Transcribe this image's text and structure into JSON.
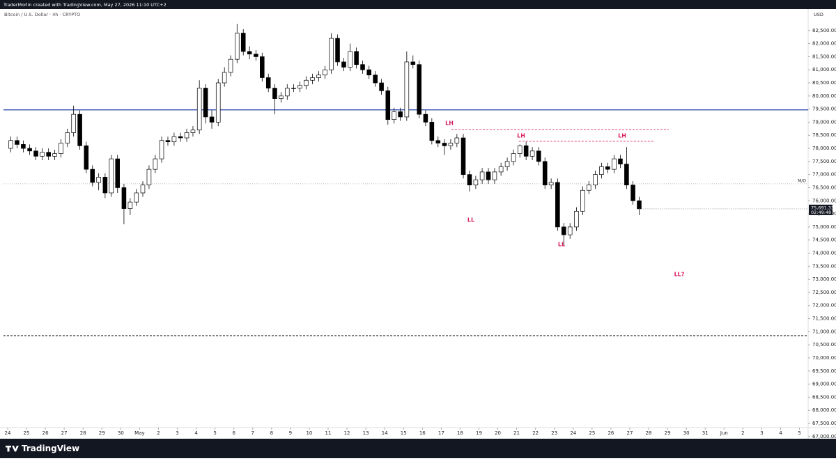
{
  "header": {
    "credit": "TraderMorlin created with TradingView.com, May 27, 2026 11:10 UTC+2",
    "brand": "TradingView"
  },
  "chart_data": {
    "type": "candlestick",
    "title": "Bitcoin / U.S. Dollar · 4h · CRYPTO",
    "currency": "USD",
    "up_color": "#ffffff",
    "down_color": "#000000",
    "border_color": "#000000",
    "x": [
      0.17,
      0.5,
      0.83,
      1.17,
      1.5,
      1.83,
      2.17,
      2.5,
      2.83,
      3.17,
      3.5,
      3.83,
      4.17,
      4.5,
      4.83,
      5.17,
      5.5,
      5.83,
      6.17,
      6.5,
      6.83,
      7.17,
      7.5,
      7.83,
      8.17,
      8.5,
      8.83,
      9.17,
      9.5,
      9.83,
      10.17,
      10.5,
      10.83,
      11.17,
      11.5,
      11.83,
      12.17,
      12.5,
      12.83,
      13.17,
      13.5,
      13.83,
      14.17,
      14.5,
      14.83,
      15.17,
      15.5,
      15.83,
      16.17,
      16.5,
      16.83,
      17.17,
      17.5,
      17.83,
      18.17,
      18.5,
      18.83,
      19.17,
      19.5,
      19.83,
      20.17,
      20.5,
      20.83,
      21.17,
      21.5,
      21.83,
      22.17,
      22.5,
      22.83,
      23.17,
      23.5,
      23.83,
      24.17,
      24.5,
      24.83,
      25.17,
      25.5,
      25.83,
      26.17,
      26.5,
      26.83,
      27.17,
      27.5,
      27.83,
      28.17,
      28.5,
      28.83,
      29.17,
      29.5,
      29.83,
      30.17,
      30.5,
      30.83,
      31.17,
      31.5,
      31.83,
      32.17,
      32.5,
      32.83,
      33.17,
      33.5
    ],
    "open": [
      78000,
      78300,
      78150,
      78000,
      77900,
      77700,
      77850,
      77700,
      77800,
      78200,
      78600,
      79300,
      78100,
      77200,
      76700,
      76900,
      76300,
      77600,
      76500,
      75700,
      75950,
      76300,
      76600,
      77200,
      77600,
      78300,
      78250,
      78450,
      78400,
      78600,
      78700,
      80300,
      79200,
      79000,
      80500,
      80900,
      81400,
      82400,
      81700,
      81600,
      81500,
      80700,
      80300,
      79900,
      80000,
      80300,
      80300,
      80400,
      80600,
      80700,
      80800,
      81000,
      82200,
      81300,
      81100,
      81700,
      81200,
      81000,
      80800,
      80500,
      80200,
      79100,
      79400,
      79200,
      81300,
      81200,
      79300,
      79000,
      78300,
      78200,
      78100,
      78200,
      78400,
      77000,
      76600,
      76800,
      77100,
      76800,
      77100,
      77300,
      77500,
      77800,
      78100,
      77700,
      77900,
      77500,
      76600,
      76700,
      75000,
      74700,
      75000,
      75600,
      76400,
      76600,
      77000,
      77300,
      77200,
      77600,
      77400,
      76600,
      76000
    ],
    "high": [
      78450,
      78450,
      78300,
      78150,
      78050,
      78000,
      78000,
      77950,
      78350,
      78750,
      79630,
      79450,
      78250,
      77350,
      77050,
      77050,
      77750,
      77750,
      76650,
      76100,
      76450,
      76750,
      77350,
      77750,
      78450,
      78450,
      78600,
      78600,
      78750,
      78850,
      80600,
      80450,
      79450,
      80650,
      81100,
      81550,
      82750,
      82550,
      81900,
      81750,
      81650,
      80850,
      80450,
      80150,
      80450,
      80450,
      80550,
      80750,
      80850,
      80950,
      81150,
      82400,
      82350,
      81450,
      82000,
      81850,
      81350,
      81150,
      80950,
      80650,
      80350,
      79550,
      79550,
      81700,
      81550,
      81350,
      79450,
      79150,
      78450,
      78350,
      78350,
      78550,
      78550,
      77150,
      76950,
      77250,
      77250,
      77250,
      77450,
      77650,
      77950,
      78150,
      78250,
      78050,
      78050,
      77650,
      76850,
      76850,
      75150,
      75150,
      75750,
      76550,
      76750,
      77150,
      77450,
      77450,
      77750,
      77750,
      78050,
      76750,
      76150
    ],
    "low": [
      77850,
      78000,
      77850,
      77750,
      77550,
      77550,
      77550,
      77550,
      77650,
      78050,
      78450,
      77950,
      77050,
      76550,
      76400,
      76100,
      76150,
      76300,
      75100,
      75450,
      75800,
      76150,
      76450,
      77050,
      77450,
      78100,
      78100,
      78250,
      78250,
      78450,
      78550,
      78950,
      78750,
      78850,
      80350,
      80750,
      81250,
      81550,
      81400,
      81350,
      80550,
      80150,
      79300,
      79750,
      79850,
      80150,
      80150,
      80250,
      80450,
      80550,
      80650,
      80850,
      81150,
      80950,
      80950,
      81050,
      80850,
      80650,
      80350,
      80050,
      78900,
      78950,
      79050,
      79050,
      81050,
      79150,
      78850,
      78150,
      78050,
      77750,
      77950,
      78050,
      76850,
      76350,
      76450,
      76650,
      76650,
      76650,
      76950,
      77150,
      77350,
      77650,
      77550,
      77550,
      77350,
      76450,
      76450,
      74850,
      74300,
      74550,
      74850,
      75450,
      76250,
      76450,
      76850,
      77050,
      77050,
      77250,
      76450,
      75850,
      75450
    ],
    "close": [
      78300,
      78150,
      78000,
      77900,
      77700,
      77850,
      77700,
      77800,
      78200,
      78600,
      79300,
      78100,
      77200,
      76700,
      76900,
      76300,
      77600,
      76500,
      75700,
      75950,
      76300,
      76600,
      77200,
      77600,
      78300,
      78250,
      78450,
      78400,
      78600,
      78700,
      80300,
      79200,
      79000,
      80500,
      80900,
      81400,
      82400,
      81700,
      81600,
      81500,
      80700,
      80300,
      79900,
      80000,
      80300,
      80300,
      80400,
      80600,
      80700,
      80800,
      81000,
      82200,
      81300,
      81100,
      81700,
      81200,
      81000,
      80800,
      80500,
      80200,
      79100,
      79400,
      79200,
      81300,
      81200,
      79300,
      79000,
      78300,
      78200,
      78100,
      78200,
      78400,
      77000,
      76600,
      76800,
      77100,
      76800,
      77100,
      77300,
      77500,
      77800,
      78100,
      77700,
      77900,
      77500,
      76600,
      76700,
      75000,
      74700,
      75000,
      75600,
      76400,
      76600,
      77000,
      77300,
      77200,
      77600,
      77400,
      76600,
      76000,
      75691.33
    ],
    "last_price_label": "75,691.33",
    "countdown": "02:49:48",
    "xlim": [
      -0.22,
      42.46
    ],
    "xticks": [
      {
        "value": 0,
        "label": "24"
      },
      {
        "value": 1,
        "label": "25"
      },
      {
        "value": 2,
        "label": "26"
      },
      {
        "value": 3,
        "label": "27"
      },
      {
        "value": 4,
        "label": "28"
      },
      {
        "value": 5,
        "label": "29"
      },
      {
        "value": 6,
        "label": "30"
      },
      {
        "value": 7,
        "label": "May"
      },
      {
        "value": 8,
        "label": "2"
      },
      {
        "value": 9,
        "label": "3"
      },
      {
        "value": 10,
        "label": "4"
      },
      {
        "value": 11,
        "label": "5"
      },
      {
        "value": 12,
        "label": "6"
      },
      {
        "value": 13,
        "label": "7"
      },
      {
        "value": 14,
        "label": "8"
      },
      {
        "value": 15,
        "label": "9"
      },
      {
        "value": 16,
        "label": "10"
      },
      {
        "value": 17,
        "label": "11"
      },
      {
        "value": 18,
        "label": "12"
      },
      {
        "value": 19,
        "label": "13"
      },
      {
        "value": 20,
        "label": "14"
      },
      {
        "value": 21,
        "label": "15"
      },
      {
        "value": 22,
        "label": "16"
      },
      {
        "value": 23,
        "label": "17"
      },
      {
        "value": 24,
        "label": "18"
      },
      {
        "value": 25,
        "label": "19"
      },
      {
        "value": 26,
        "label": "20"
      },
      {
        "value": 27,
        "label": "21"
      },
      {
        "value": 28,
        "label": "22"
      },
      {
        "value": 29,
        "label": "23"
      },
      {
        "value": 30,
        "label": "24"
      },
      {
        "value": 31,
        "label": "25"
      },
      {
        "value": 32,
        "label": "26"
      },
      {
        "value": 33,
        "label": "27"
      },
      {
        "value": 34,
        "label": "28"
      },
      {
        "value": 35,
        "label": "29"
      },
      {
        "value": 36,
        "label": "30"
      },
      {
        "value": 37,
        "label": "31"
      },
      {
        "value": 38,
        "label": "Jun"
      },
      {
        "value": 39,
        "label": "2"
      },
      {
        "value": 40,
        "label": "3"
      },
      {
        "value": 41,
        "label": "4"
      },
      {
        "value": 42,
        "label": "5"
      }
    ],
    "ylim": [
      67340,
      82920
    ],
    "yticks": [
      {
        "value": 82500,
        "label": "82,500.00"
      },
      {
        "value": 82000,
        "label": "82,000.00"
      },
      {
        "value": 81500,
        "label": "81,500.00"
      },
      {
        "value": 81000,
        "label": "81,000.00"
      },
      {
        "value": 80500,
        "label": "80,500.00"
      },
      {
        "value": 80000,
        "label": "80,000.00"
      },
      {
        "value": 79500,
        "label": "79,500.00"
      },
      {
        "value": 79000,
        "label": "79,000.00"
      },
      {
        "value": 78500,
        "label": "78,500.00"
      },
      {
        "value": 78000,
        "label": "78,000.00"
      },
      {
        "value": 77500,
        "label": "77,500.00"
      },
      {
        "value": 77000,
        "label": "77,000.00"
      },
      {
        "value": 76500,
        "label": "76,500.00"
      },
      {
        "value": 76000,
        "label": "76,000.00"
      },
      {
        "value": 75500,
        "label": "75,500.00"
      },
      {
        "value": 75000,
        "label": "75,000.00"
      },
      {
        "value": 74500,
        "label": "74,500.00"
      },
      {
        "value": 74000,
        "label": "74,000.00"
      },
      {
        "value": 73500,
        "label": "73,500.00"
      },
      {
        "value": 73000,
        "label": "73,000.00"
      },
      {
        "value": 72500,
        "label": "72,500.00"
      },
      {
        "value": 72000,
        "label": "72,000.00"
      },
      {
        "value": 71500,
        "label": "71,500.00"
      },
      {
        "value": 71000,
        "label": "71,000.00"
      },
      {
        "value": 70500,
        "label": "70,500.00"
      },
      {
        "value": 70000,
        "label": "70,000.00"
      },
      {
        "value": 69500,
        "label": "69,500.00"
      },
      {
        "value": 69000,
        "label": "69,000.00"
      },
      {
        "value": 68500,
        "label": "68,500.00"
      },
      {
        "value": 68000,
        "label": "68,000.00"
      },
      {
        "value": 67500,
        "label": "67,500.00"
      },
      {
        "value": 67000,
        "label": "67,000.00"
      }
    ],
    "grid": false,
    "hlines": [
      {
        "value": 79470,
        "color": "#1e3fa8",
        "dash": "solid"
      },
      {
        "value": 70850,
        "color": "#333333",
        "dash": "dashed"
      }
    ],
    "open_level": {
      "label": "M/O",
      "value": 76650,
      "color": "#bbbbbb"
    },
    "segments": [
      {
        "value": 78720,
        "x": [
          23.54,
          35.07
        ],
        "color": "#e0457b"
      },
      {
        "value": 78270,
        "x": [
          27.12,
          34.33
        ],
        "color": "#e0457b"
      }
    ],
    "annotations": [
      "LH",
      "LL",
      "LH",
      "LL",
      "LH",
      "LL?"
    ],
    "annotation_color": "#d81b60"
  }
}
